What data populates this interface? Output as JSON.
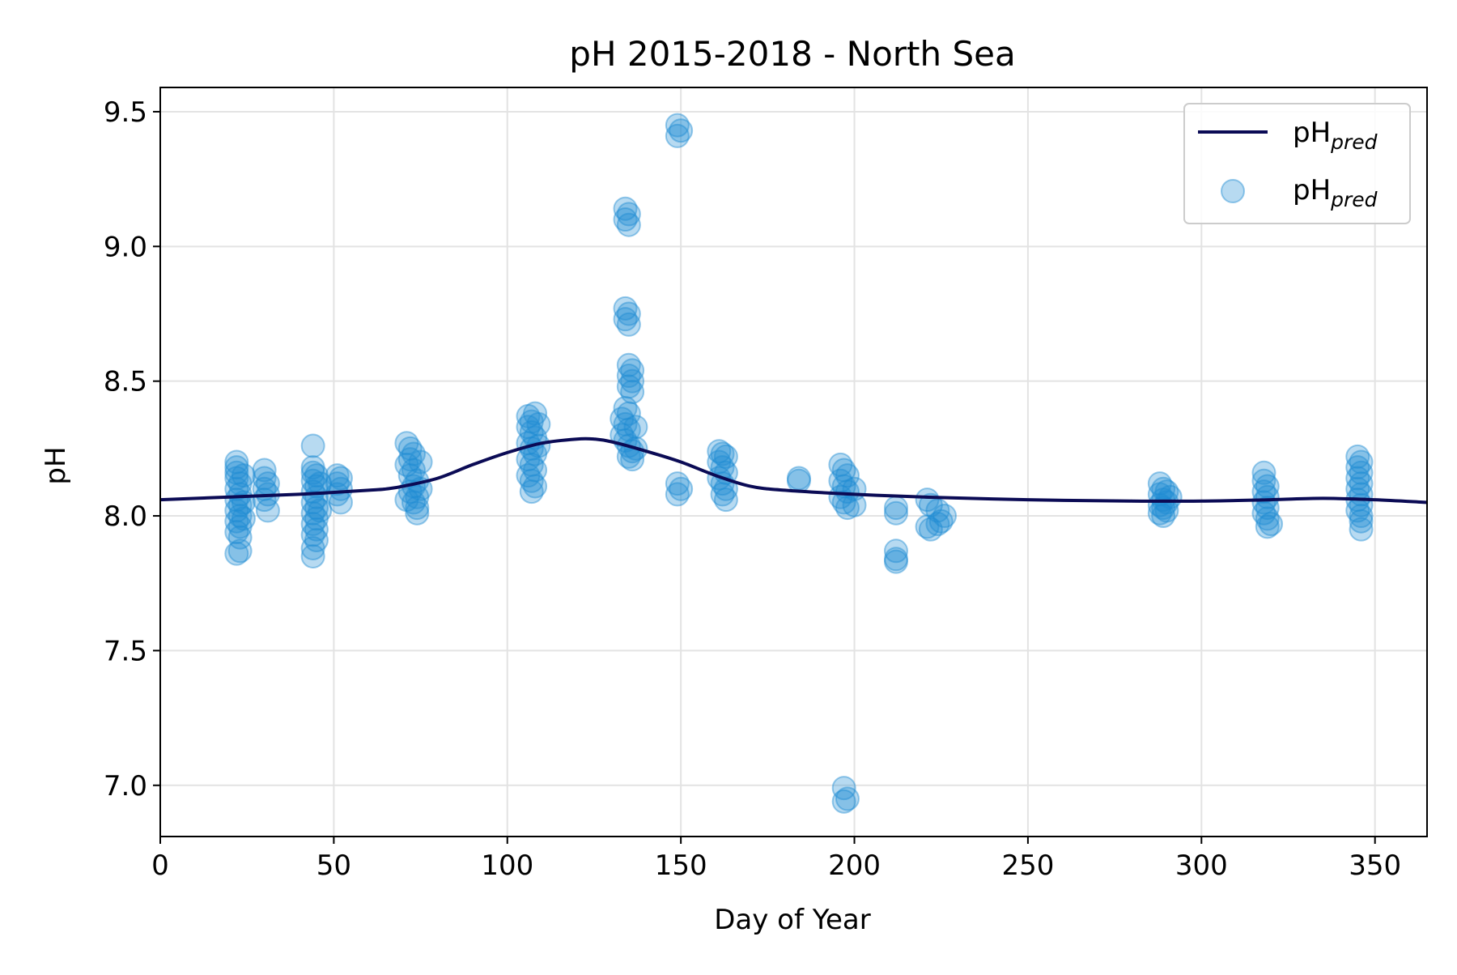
{
  "chart_data": {
    "type": "scatter",
    "title": "pH 2015-2018 - North Sea",
    "xlabel": "Day of Year",
    "ylabel": "pH",
    "xlim": [
      0,
      365
    ],
    "ylim": [
      6.81,
      9.59
    ],
    "grid": true,
    "legend_position": "top-right",
    "x_ticks": [
      0,
      50,
      100,
      150,
      200,
      250,
      300,
      350
    ],
    "x_tick_labels": [
      "0",
      "50",
      "100",
      "150",
      "200",
      "250",
      "300",
      "350"
    ],
    "y_ticks": [
      7.0,
      7.5,
      8.0,
      8.5,
      9.0,
      9.5
    ],
    "y_tick_labels": [
      "7.0",
      "7.5",
      "8.0",
      "8.5",
      "9.0",
      "9.5"
    ],
    "legend": [
      {
        "name": "pH",
        "sub": "pred",
        "marker": "line"
      },
      {
        "name": "pH",
        "sub": "pred",
        "marker": "circle"
      }
    ],
    "colors": {
      "line": "#0b0b55",
      "points": "#1f8bd3",
      "grid": "#e3e3e3",
      "axis": "#000000"
    },
    "series": [
      {
        "name": "pH_pred line",
        "type": "line",
        "x": [
          0,
          20,
          40,
          60,
          65,
          70,
          80,
          90,
          100,
          110,
          120,
          125,
          130,
          140,
          150,
          160,
          170,
          180,
          200,
          220,
          250,
          280,
          300,
          320,
          335,
          350,
          365
        ],
        "y": [
          8.06,
          8.07,
          8.08,
          8.095,
          8.1,
          8.11,
          8.14,
          8.19,
          8.235,
          8.27,
          8.285,
          8.285,
          8.275,
          8.24,
          8.2,
          8.15,
          8.11,
          8.095,
          8.08,
          8.07,
          8.06,
          8.055,
          8.055,
          8.06,
          8.065,
          8.06,
          8.05
        ]
      },
      {
        "name": "pH_pred points",
        "type": "scatter",
        "points": [
          [
            22,
            8.2
          ],
          [
            22,
            8.18
          ],
          [
            22,
            8.16
          ],
          [
            22,
            8.14
          ],
          [
            23,
            8.12
          ],
          [
            22,
            8.1
          ],
          [
            23,
            8.08
          ],
          [
            22,
            8.06
          ],
          [
            23,
            8.04
          ],
          [
            22,
            8.02
          ],
          [
            23,
            8.0
          ],
          [
            22,
            7.98
          ],
          [
            23,
            7.96
          ],
          [
            22,
            7.94
          ],
          [
            23,
            7.92
          ],
          [
            22,
            7.86
          ],
          [
            23,
            7.87
          ],
          [
            24,
            8.15
          ],
          [
            24,
            8.05
          ],
          [
            24,
            7.99
          ],
          [
            30,
            8.17
          ],
          [
            30,
            8.14
          ],
          [
            31,
            8.12
          ],
          [
            30,
            8.1
          ],
          [
            31,
            8.08
          ],
          [
            30,
            8.06
          ],
          [
            31,
            8.02
          ],
          [
            44,
            8.26
          ],
          [
            44,
            8.18
          ],
          [
            44,
            8.16
          ],
          [
            45,
            8.15
          ],
          [
            44,
            8.13
          ],
          [
            45,
            8.11
          ],
          [
            44,
            8.09
          ],
          [
            45,
            8.07
          ],
          [
            44,
            8.05
          ],
          [
            45,
            8.03
          ],
          [
            44,
            8.01
          ],
          [
            45,
            7.99
          ],
          [
            44,
            7.97
          ],
          [
            45,
            7.95
          ],
          [
            44,
            7.93
          ],
          [
            45,
            7.91
          ],
          [
            44,
            7.88
          ],
          [
            44,
            7.85
          ],
          [
            46,
            8.12
          ],
          [
            46,
            8.02
          ],
          [
            51,
            8.15
          ],
          [
            52,
            8.14
          ],
          [
            51,
            8.12
          ],
          [
            52,
            8.1
          ],
          [
            51,
            8.08
          ],
          [
            52,
            8.05
          ],
          [
            71,
            8.27
          ],
          [
            72,
            8.25
          ],
          [
            73,
            8.23
          ],
          [
            72,
            8.21
          ],
          [
            71,
            8.19
          ],
          [
            73,
            8.17
          ],
          [
            72,
            8.15
          ],
          [
            74,
            8.13
          ],
          [
            73,
            8.11
          ],
          [
            72,
            8.09
          ],
          [
            74,
            8.07
          ],
          [
            73,
            8.05
          ],
          [
            74,
            8.03
          ],
          [
            74,
            8.01
          ],
          [
            75,
            8.2
          ],
          [
            75,
            8.1
          ],
          [
            71,
            8.06
          ],
          [
            106,
            8.37
          ],
          [
            107,
            8.35
          ],
          [
            108,
            8.38
          ],
          [
            106,
            8.33
          ],
          [
            107,
            8.31
          ],
          [
            108,
            8.29
          ],
          [
            106,
            8.27
          ],
          [
            107,
            8.25
          ],
          [
            108,
            8.23
          ],
          [
            106,
            8.21
          ],
          [
            107,
            8.19
          ],
          [
            108,
            8.17
          ],
          [
            106,
            8.15
          ],
          [
            107,
            8.13
          ],
          [
            108,
            8.11
          ],
          [
            107,
            8.09
          ],
          [
            109,
            8.34
          ],
          [
            109,
            8.26
          ],
          [
            134,
            9.14
          ],
          [
            135,
            9.12
          ],
          [
            134,
            9.1
          ],
          [
            135,
            9.08
          ],
          [
            134,
            8.77
          ],
          [
            135,
            8.75
          ],
          [
            134,
            8.73
          ],
          [
            135,
            8.71
          ],
          [
            135,
            8.56
          ],
          [
            136,
            8.54
          ],
          [
            135,
            8.52
          ],
          [
            136,
            8.5
          ],
          [
            135,
            8.48
          ],
          [
            136,
            8.46
          ],
          [
            134,
            8.4
          ],
          [
            135,
            8.38
          ],
          [
            133,
            8.36
          ],
          [
            134,
            8.34
          ],
          [
            135,
            8.32
          ],
          [
            133,
            8.3
          ],
          [
            134,
            8.28
          ],
          [
            135,
            8.26
          ],
          [
            136,
            8.24
          ],
          [
            135,
            8.22
          ],
          [
            136,
            8.21
          ],
          [
            137,
            8.25
          ],
          [
            137,
            8.33
          ],
          [
            149,
            9.45
          ],
          [
            150,
            9.43
          ],
          [
            149,
            9.41
          ],
          [
            149,
            8.12
          ],
          [
            150,
            8.1
          ],
          [
            149,
            8.08
          ],
          [
            161,
            8.24
          ],
          [
            162,
            8.23
          ],
          [
            163,
            8.22
          ],
          [
            161,
            8.2
          ],
          [
            162,
            8.18
          ],
          [
            163,
            8.16
          ],
          [
            161,
            8.14
          ],
          [
            162,
            8.12
          ],
          [
            163,
            8.1
          ],
          [
            162,
            8.08
          ],
          [
            163,
            8.06
          ],
          [
            184,
            8.14
          ],
          [
            184,
            8.13
          ],
          [
            196,
            8.19
          ],
          [
            197,
            8.17
          ],
          [
            198,
            8.15
          ],
          [
            196,
            8.13
          ],
          [
            197,
            8.11
          ],
          [
            198,
            8.09
          ],
          [
            196,
            8.07
          ],
          [
            197,
            8.05
          ],
          [
            198,
            8.03
          ],
          [
            200,
            8.1
          ],
          [
            200,
            8.04
          ],
          [
            197,
            6.99
          ],
          [
            198,
            6.95
          ],
          [
            197,
            6.94
          ],
          [
            212,
            8.03
          ],
          [
            212,
            8.01
          ],
          [
            212,
            7.87
          ],
          [
            212,
            7.84
          ],
          [
            212,
            7.83
          ],
          [
            221,
            8.06
          ],
          [
            222,
            8.04
          ],
          [
            221,
            7.96
          ],
          [
            222,
            7.95
          ],
          [
            224,
            8.02
          ],
          [
            225,
            7.98
          ],
          [
            224,
            7.97
          ],
          [
            226,
            8.0
          ],
          [
            288,
            8.12
          ],
          [
            289,
            8.1
          ],
          [
            290,
            8.09
          ],
          [
            288,
            8.08
          ],
          [
            289,
            8.06
          ],
          [
            290,
            8.05
          ],
          [
            288,
            8.04
          ],
          [
            289,
            8.03
          ],
          [
            290,
            8.02
          ],
          [
            288,
            8.01
          ],
          [
            289,
            8.0
          ],
          [
            291,
            8.07
          ],
          [
            318,
            8.16
          ],
          [
            318,
            8.13
          ],
          [
            319,
            8.11
          ],
          [
            318,
            8.09
          ],
          [
            319,
            8.07
          ],
          [
            318,
            8.05
          ],
          [
            319,
            8.03
          ],
          [
            318,
            8.01
          ],
          [
            319,
            7.99
          ],
          [
            320,
            7.97
          ],
          [
            319,
            7.96
          ],
          [
            345,
            8.22
          ],
          [
            346,
            8.2
          ],
          [
            345,
            8.18
          ],
          [
            346,
            8.16
          ],
          [
            345,
            8.14
          ],
          [
            346,
            8.12
          ],
          [
            345,
            8.1
          ],
          [
            346,
            8.08
          ],
          [
            345,
            8.06
          ],
          [
            346,
            8.04
          ],
          [
            345,
            8.02
          ],
          [
            346,
            8.0
          ],
          [
            346,
            7.98
          ],
          [
            346,
            7.95
          ]
        ]
      }
    ]
  }
}
